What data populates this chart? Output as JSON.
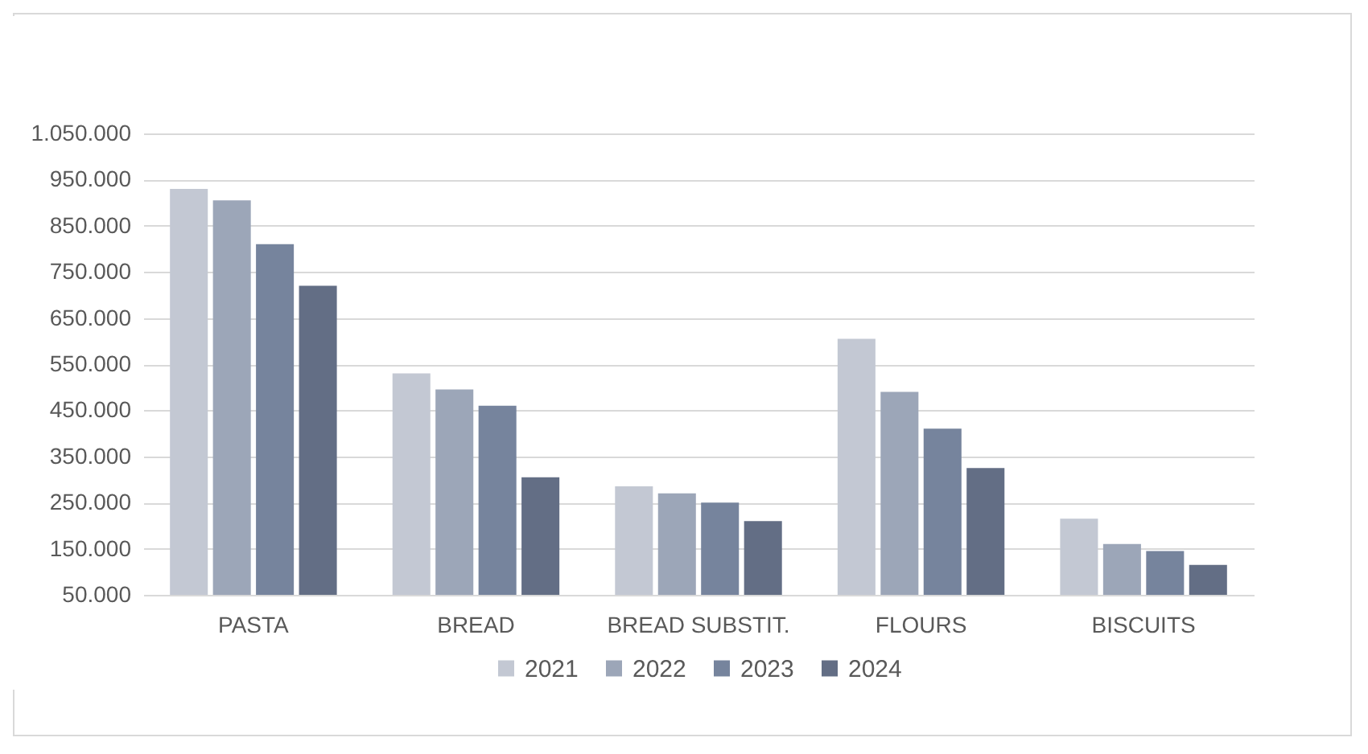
{
  "chart_data": {
    "type": "bar",
    "categories": [
      "PASTA",
      "BREAD",
      "BREAD SUBSTIT.",
      "FLOURS",
      "BISCUITS"
    ],
    "series": [
      {
        "name": "2021",
        "color": "#c3c8d3",
        "values": [
          930000,
          530000,
          285000,
          605000,
          215000
        ]
      },
      {
        "name": "2022",
        "color": "#9ca6b8",
        "values": [
          905000,
          495000,
          270000,
          490000,
          160000
        ]
      },
      {
        "name": "2023",
        "color": "#76849d",
        "values": [
          810000,
          460000,
          250000,
          410000,
          145000
        ]
      },
      {
        "name": "2024",
        "color": "#636e85",
        "values": [
          720000,
          305000,
          210000,
          325000,
          115000
        ]
      }
    ],
    "ylim": [
      50000,
      1050000
    ],
    "yticks": [
      {
        "value": 50000,
        "label": "50.000"
      },
      {
        "value": 150000,
        "label": "150.000"
      },
      {
        "value": 250000,
        "label": "250.000"
      },
      {
        "value": 350000,
        "label": "350.000"
      },
      {
        "value": 450000,
        "label": "450.000"
      },
      {
        "value": 550000,
        "label": "550.000"
      },
      {
        "value": 650000,
        "label": "650.000"
      },
      {
        "value": 750000,
        "label": "750.000"
      },
      {
        "value": 850000,
        "label": "850.000"
      },
      {
        "value": 950000,
        "label": "950.000"
      },
      {
        "value": 1050000,
        "label": "1.050.000"
      }
    ],
    "grid": "y",
    "legend": "bottom"
  }
}
